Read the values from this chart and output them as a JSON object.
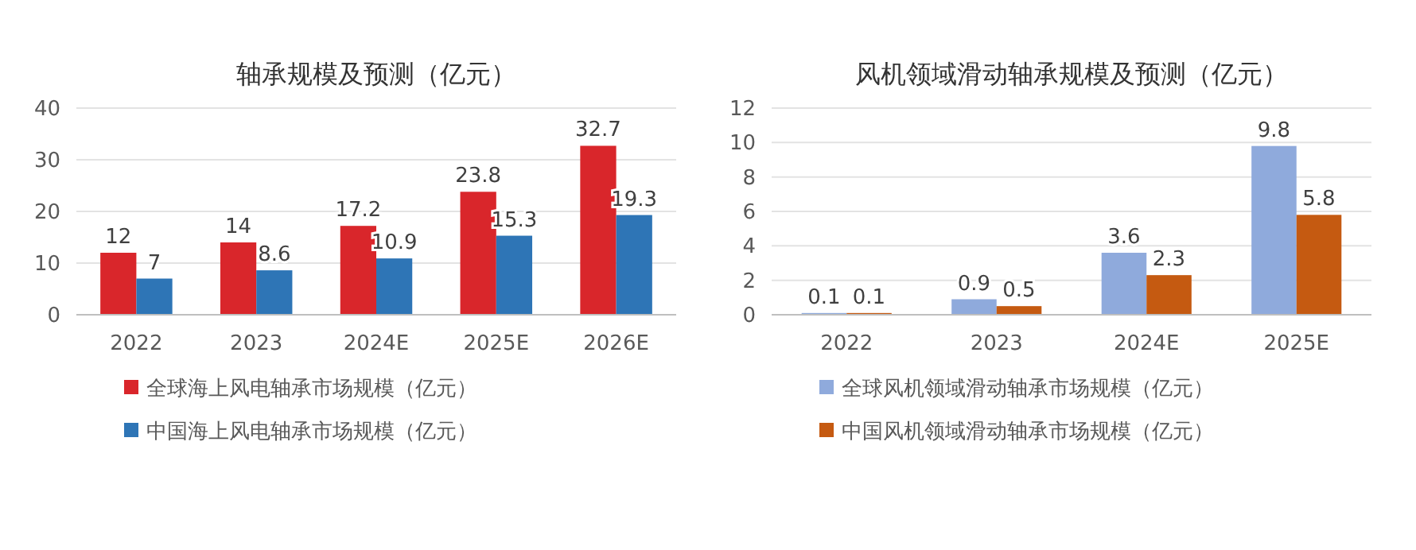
{
  "chart_data": [
    {
      "type": "bar",
      "title": "轴承规模及预测（亿元）",
      "categories": [
        "2022",
        "2023",
        "2024E",
        "2025E",
        "2026E"
      ],
      "series": [
        {
          "name": "全球海上风电轴承市场规模（亿元）",
          "color": "#d9262b",
          "values": [
            12,
            14,
            17.2,
            23.8,
            32.7
          ]
        },
        {
          "name": "中国海上风电轴承市场规模（亿元）",
          "color": "#2e75b6",
          "values": [
            7,
            8.6,
            10.9,
            15.3,
            19.3
          ]
        }
      ],
      "ylim": [
        0,
        40
      ],
      "yticks": [
        0,
        10,
        20,
        30,
        40
      ],
      "grid": "y",
      "legend": "bottom",
      "data_labels": true
    },
    {
      "type": "bar",
      "title": "风机领域滑动轴承规模及预测（亿元）",
      "categories": [
        "2022",
        "2023",
        "2024E",
        "2025E"
      ],
      "series": [
        {
          "name": "全球风机领域滑动轴承市场规模（亿元）",
          "color": "#8faadc",
          "values": [
            0.1,
            0.9,
            3.6,
            9.8
          ]
        },
        {
          "name": "中国风机领域滑动轴承市场规模（亿元）",
          "color": "#c55a11",
          "values": [
            0.1,
            0.5,
            2.3,
            5.8
          ]
        }
      ],
      "ylim": [
        0,
        12
      ],
      "yticks": [
        0,
        2,
        4,
        6,
        8,
        10,
        12
      ],
      "grid": "y",
      "legend": "bottom",
      "data_labels": true
    }
  ]
}
